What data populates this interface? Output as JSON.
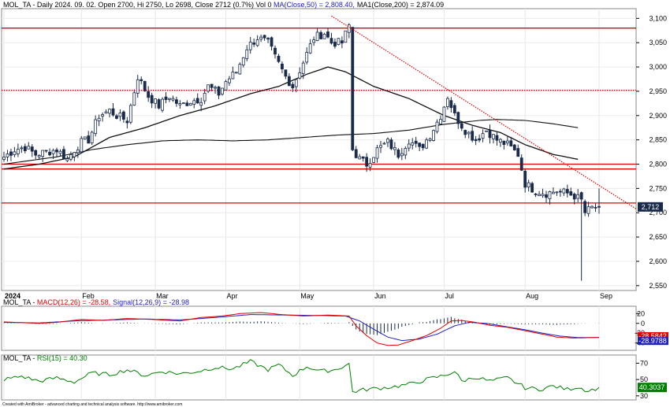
{
  "chart_data": [
    {
      "type": "candlestick",
      "symbol": "MOL_TA",
      "header": {
        "prefix": "MOL_TA - Daily 2024. 09. 02. Open 2700, Hi 2750, Lo 2698, Close 2712 (0.7%) Vol 0 ",
        "ma50_label": "MA(Close,50) = 2,808.40,",
        "ma200_label": "MA1(Close,200) = 2,874.09",
        "ma50_color": "#000000",
        "ma200_color": "#000000"
      },
      "last_close_label": "2,712",
      "ylim": [
        2540,
        3120
      ],
      "y_ticks": [
        "3,100",
        "3,050",
        "3,000",
        "2,950",
        "2,900",
        "2,850",
        "2,800",
        "2,750",
        "2,700",
        "2,650",
        "2,600",
        "2,550"
      ],
      "month_labels": [
        {
          "label": "2024",
          "bold": true,
          "bar": 0
        },
        {
          "label": "Feb",
          "bold": false,
          "bar": 22
        },
        {
          "label": "Mar",
          "bold": false,
          "bar": 43
        },
        {
          "label": "Apr",
          "bold": false,
          "bar": 63
        },
        {
          "label": "May",
          "bold": false,
          "bar": 84
        },
        {
          "label": "Jun",
          "bold": false,
          "bar": 105
        },
        {
          "label": "Jul",
          "bold": false,
          "bar": 125
        },
        {
          "label": "Aug",
          "bold": false,
          "bar": 148
        },
        {
          "label": "Sep",
          "bold": false,
          "bar": 169
        }
      ],
      "horizontal_lines": [
        {
          "value": 3080,
          "style": "solid",
          "color": "#e00000"
        },
        {
          "value": 2952,
          "style": "dotted",
          "color": "#e00000"
        },
        {
          "value": 2800,
          "style": "solid",
          "color": "#e00000"
        },
        {
          "value": 2790,
          "style": "solid",
          "color": "#e00000"
        },
        {
          "value": 2720,
          "style": "solid",
          "color": "#e00000"
        }
      ],
      "trend_line": {
        "from": [
          93,
          3105
        ],
        "to": [
          178,
          2715
        ],
        "color": "#e00000",
        "style": "dotted"
      },
      "close_keys": [
        [
          0,
          2815
        ],
        [
          3,
          2830
        ],
        [
          6,
          2835
        ],
        [
          9,
          2820
        ],
        [
          12,
          2825
        ],
        [
          15,
          2830
        ],
        [
          18,
          2810
        ],
        [
          20,
          2830
        ],
        [
          22,
          2845
        ],
        [
          24,
          2850
        ],
        [
          27,
          2900
        ],
        [
          30,
          2910
        ],
        [
          32,
          2900
        ],
        [
          35,
          2890
        ],
        [
          38,
          2980
        ],
        [
          41,
          2940
        ],
        [
          44,
          2920
        ],
        [
          47,
          2940
        ],
        [
          50,
          2920
        ],
        [
          53,
          2930
        ],
        [
          56,
          2935
        ],
        [
          58,
          2960
        ],
        [
          61,
          2945
        ],
        [
          63,
          2970
        ],
        [
          66,
          2990
        ],
        [
          69,
          3040
        ],
        [
          72,
          3060
        ],
        [
          75,
          3050
        ],
        [
          77,
          3020
        ],
        [
          80,
          2980
        ],
        [
          82,
          2960
        ],
        [
          85,
          3010
        ],
        [
          88,
          3060
        ],
        [
          91,
          3070
        ],
        [
          93,
          3050
        ],
        [
          96,
          3050
        ],
        [
          98,
          3085
        ],
        [
          99,
          2830
        ],
        [
          101,
          2810
        ],
        [
          103,
          2800
        ],
        [
          106,
          2830
        ],
        [
          109,
          2845
        ],
        [
          112,
          2820
        ],
        [
          115,
          2850
        ],
        [
          118,
          2830
        ],
        [
          121,
          2860
        ],
        [
          124,
          2900
        ],
        [
          126,
          2940
        ],
        [
          128,
          2900
        ],
        [
          131,
          2870
        ],
        [
          134,
          2850
        ],
        [
          137,
          2870
        ],
        [
          140,
          2850
        ],
        [
          143,
          2840
        ],
        [
          146,
          2820
        ],
        [
          148,
          2760
        ],
        [
          151,
          2745
        ],
        [
          154,
          2740
        ],
        [
          157,
          2745
        ],
        [
          160,
          2740
        ],
        [
          162,
          2735
        ],
        [
          164,
          2725
        ],
        [
          165,
          2700
        ],
        [
          167,
          2710
        ],
        [
          169,
          2712
        ]
      ],
      "ma50_keys": [
        [
          0,
          2790
        ],
        [
          10,
          2800
        ],
        [
          20,
          2815
        ],
        [
          30,
          2855
        ],
        [
          40,
          2875
        ],
        [
          50,
          2900
        ],
        [
          60,
          2920
        ],
        [
          70,
          2945
        ],
        [
          78,
          2960
        ],
        [
          86,
          2985
        ],
        [
          92,
          3000
        ],
        [
          97,
          2990
        ],
        [
          105,
          2960
        ],
        [
          115,
          2935
        ],
        [
          125,
          2900
        ],
        [
          133,
          2880
        ],
        [
          141,
          2865
        ],
        [
          148,
          2840
        ],
        [
          156,
          2820
        ],
        [
          163,
          2810
        ]
      ],
      "ma200_keys": [
        [
          0,
          2800
        ],
        [
          15,
          2815
        ],
        [
          25,
          2830
        ],
        [
          35,
          2840
        ],
        [
          45,
          2848
        ],
        [
          55,
          2850
        ],
        [
          65,
          2848
        ],
        [
          75,
          2850
        ],
        [
          85,
          2855
        ],
        [
          95,
          2860
        ],
        [
          105,
          2863
        ],
        [
          115,
          2870
        ],
        [
          125,
          2882
        ],
        [
          135,
          2890
        ],
        [
          140,
          2892
        ],
        [
          148,
          2890
        ],
        [
          156,
          2883
        ],
        [
          163,
          2875
        ]
      ],
      "special_bars": [
        {
          "bar": 164,
          "low": 2560
        }
      ]
    },
    {
      "type": "line",
      "name": "MACD",
      "header": {
        "prefix": "MOL_TA - ",
        "macd_label": "MACD(12,26) = -28.58,",
        "signal_label": "Signal(12,26,9) = -28.98",
        "macd_color": "#e00000",
        "signal_color": "#2020c0"
      },
      "ylim": [
        -55,
        35
      ],
      "y_ticks": [
        "20",
        "0",
        "-20",
        "-40"
      ],
      "right_labels": [
        "-28.5842",
        "-28.9788"
      ],
      "macd_keys": [
        [
          0,
          3
        ],
        [
          10,
          0
        ],
        [
          15,
          2
        ],
        [
          22,
          8
        ],
        [
          28,
          6
        ],
        [
          35,
          10
        ],
        [
          42,
          8
        ],
        [
          50,
          5
        ],
        [
          56,
          12
        ],
        [
          62,
          15
        ],
        [
          67,
          20
        ],
        [
          73,
          22
        ],
        [
          79,
          18
        ],
        [
          85,
          15
        ],
        [
          92,
          17
        ],
        [
          98,
          15
        ],
        [
          100,
          -5
        ],
        [
          103,
          -25
        ],
        [
          106,
          -40
        ],
        [
          109,
          -45
        ],
        [
          112,
          -44
        ],
        [
          116,
          -35
        ],
        [
          120,
          -25
        ],
        [
          124,
          -10
        ],
        [
          127,
          5
        ],
        [
          130,
          6
        ],
        [
          134,
          2
        ],
        [
          138,
          -4
        ],
        [
          143,
          -8
        ],
        [
          148,
          -15
        ],
        [
          153,
          -22
        ],
        [
          157,
          -28
        ],
        [
          162,
          -30
        ],
        [
          169,
          -28.6
        ]
      ],
      "signal_keys": [
        [
          0,
          2
        ],
        [
          10,
          1
        ],
        [
          20,
          5
        ],
        [
          30,
          7
        ],
        [
          40,
          9
        ],
        [
          50,
          7
        ],
        [
          60,
          12
        ],
        [
          70,
          18
        ],
        [
          80,
          17
        ],
        [
          90,
          16
        ],
        [
          97,
          15
        ],
        [
          101,
          5
        ],
        [
          105,
          -12
        ],
        [
          109,
          -28
        ],
        [
          113,
          -35
        ],
        [
          118,
          -32
        ],
        [
          123,
          -22
        ],
        [
          128,
          -5
        ],
        [
          132,
          2
        ],
        [
          137,
          0
        ],
        [
          142,
          -6
        ],
        [
          148,
          -13
        ],
        [
          153,
          -20
        ],
        [
          158,
          -26
        ],
        [
          163,
          -29
        ],
        [
          169,
          -29
        ]
      ]
    },
    {
      "type": "line",
      "name": "RSI",
      "header": {
        "prefix": "MOL_TA - ",
        "rsi_label": "RSI(15) = 40.30",
        "rsi_color": "#008000"
      },
      "ylim": [
        25,
        80
      ],
      "y_ticks": [
        "70",
        "50",
        "30"
      ],
      "right_label": "40.3037",
      "rsi_keys": [
        [
          0,
          50
        ],
        [
          5,
          54
        ],
        [
          10,
          48
        ],
        [
          15,
          52
        ],
        [
          20,
          47
        ],
        [
          25,
          58
        ],
        [
          30,
          56
        ],
        [
          35,
          62
        ],
        [
          40,
          55
        ],
        [
          45,
          60
        ],
        [
          50,
          57
        ],
        [
          55,
          60
        ],
        [
          60,
          65
        ],
        [
          65,
          63
        ],
        [
          70,
          72
        ],
        [
          75,
          62
        ],
        [
          78,
          68
        ],
        [
          82,
          55
        ],
        [
          86,
          66
        ],
        [
          90,
          60
        ],
        [
          94,
          62
        ],
        [
          98,
          69
        ],
        [
          99,
          35
        ],
        [
          103,
          38
        ],
        [
          108,
          40
        ],
        [
          112,
          42
        ],
        [
          116,
          45
        ],
        [
          120,
          50
        ],
        [
          125,
          55
        ],
        [
          128,
          60
        ],
        [
          130,
          48
        ],
        [
          134,
          53
        ],
        [
          138,
          48
        ],
        [
          143,
          52
        ],
        [
          148,
          40
        ],
        [
          152,
          38
        ],
        [
          156,
          42
        ],
        [
          160,
          38
        ],
        [
          163,
          41
        ],
        [
          166,
          36
        ],
        [
          169,
          40.3
        ]
      ]
    }
  ],
  "footer": {
    "credit": "Created with AmiBroker - advanced charting and technical analysis software. http://www.amibroker.com"
  }
}
